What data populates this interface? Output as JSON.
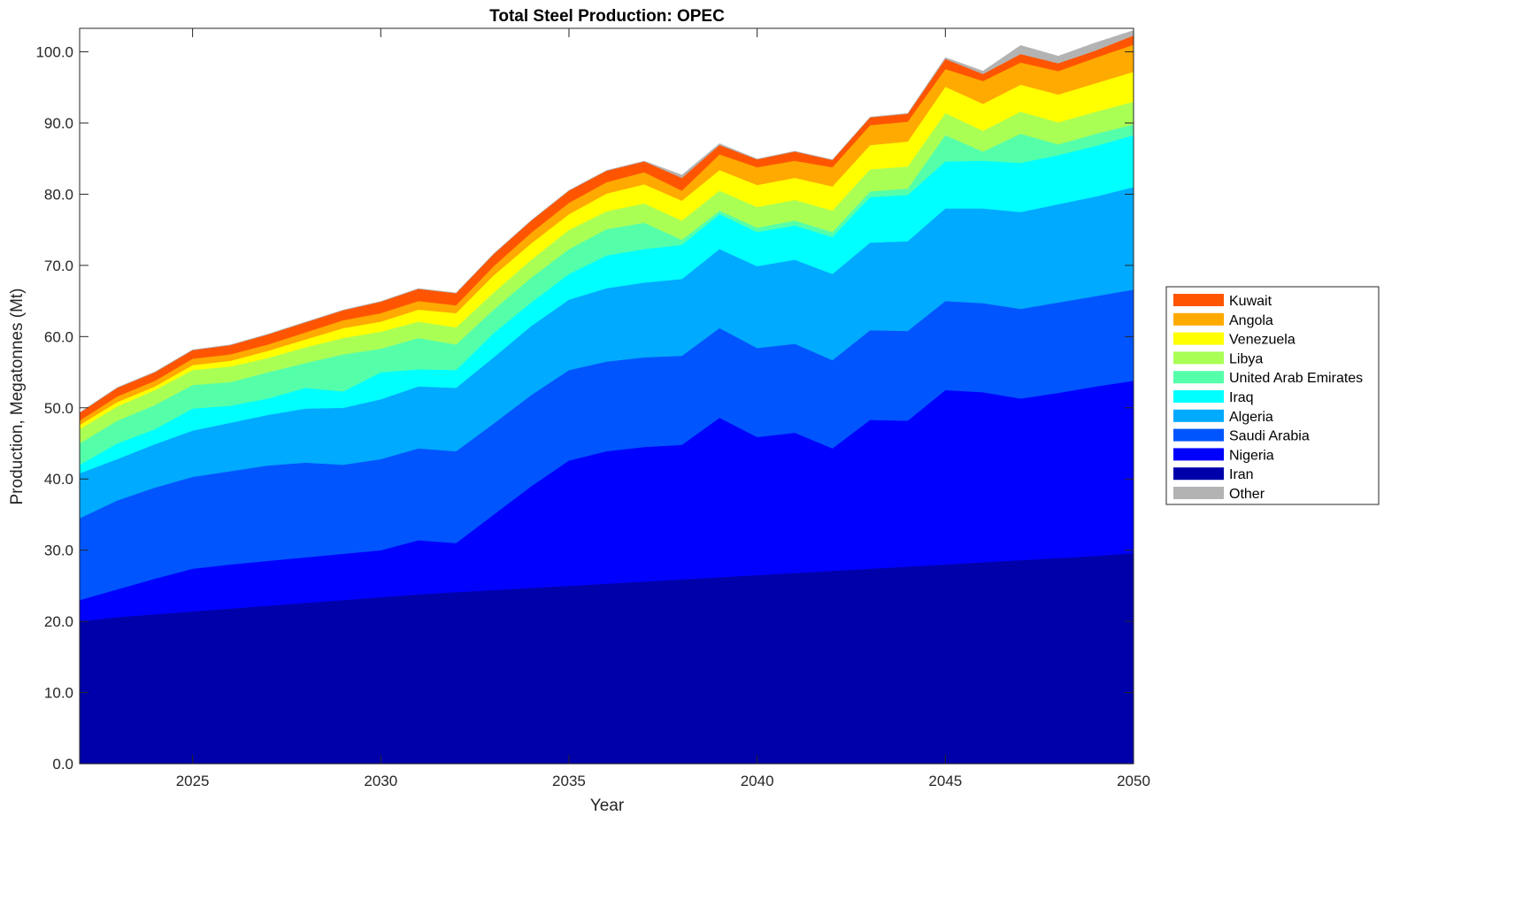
{
  "chart_data": {
    "type": "area",
    "stacked": true,
    "value_encoding": "stack_top = cumulative top of each layer (bottom layer first: Iran, Nigeria, Saudi Arabia, Algeria, Iraq, United Arab Emirates, Libya, Venezuela, Angola, Kuwait, Other); layer value = its stack_top minus the stack_top of the layer below",
    "title": "Total Steel Production: OPEC",
    "xlabel": "Year",
    "ylabel": "Production, Megatonnes (Mt)",
    "xlim": [
      2022,
      2050
    ],
    "ylim": [
      0,
      103.3
    ],
    "x_ticks": [
      "2025",
      "2030",
      "2035",
      "2040",
      "2045",
      "2050"
    ],
    "x_tick_values": [
      2025,
      2030,
      2035,
      2040,
      2045,
      2050
    ],
    "y_ticks": [
      "0.0",
      "10.0",
      "20.0",
      "30.0",
      "40.0",
      "50.0",
      "60.0",
      "70.0",
      "80.0",
      "90.0",
      "100.0"
    ],
    "y_tick_values": [
      0,
      10,
      20,
      30,
      40,
      50,
      60,
      70,
      80,
      90,
      100
    ],
    "grid": false,
    "legend_placement": "right",
    "x": [
      2022,
      2023,
      2024,
      2025,
      2026,
      2027,
      2028,
      2029,
      2030,
      2031,
      2032,
      2033,
      2034,
      2035,
      2036,
      2037,
      2038,
      2039,
      2040,
      2041,
      2042,
      2043,
      2044,
      2045,
      2046,
      2047,
      2048,
      2049,
      2050
    ],
    "series": [
      {
        "name": "Iran",
        "color": "#0000aa",
        "stack_top": [
          20.0,
          20.6,
          21.0,
          21.4,
          21.8,
          22.2,
          22.6,
          23.0,
          23.4,
          23.8,
          24.1,
          24.4,
          24.7,
          25.0,
          25.3,
          25.6,
          25.9,
          26.2,
          26.5,
          26.8,
          27.1,
          27.4,
          27.7,
          28.0,
          28.3,
          28.6,
          28.9,
          29.2,
          29.6
        ]
      },
      {
        "name": "Nigeria",
        "color": "#0000ff",
        "stack_top": [
          23.0,
          24.5,
          26.0,
          27.4,
          28.0,
          28.5,
          29.0,
          29.5,
          30.0,
          31.4,
          31.0,
          35.0,
          39.0,
          42.6,
          43.9,
          44.5,
          44.8,
          48.6,
          45.9,
          46.5,
          44.3,
          48.3,
          48.2,
          52.5,
          52.2,
          51.3,
          52.1,
          53.0,
          53.8
        ]
      },
      {
        "name": "Saudi Arabia",
        "color": "#0055ff",
        "stack_top": [
          34.5,
          37.0,
          38.8,
          40.3,
          41.1,
          41.9,
          42.3,
          42.0,
          42.8,
          44.3,
          43.9,
          47.8,
          51.8,
          55.3,
          56.5,
          57.1,
          57.3,
          61.2,
          58.4,
          59.0,
          56.7,
          60.9,
          60.8,
          65.0,
          64.7,
          63.9,
          64.8,
          65.7,
          66.6
        ]
      },
      {
        "name": "Algeria",
        "color": "#00aaff",
        "stack_top": [
          40.8,
          42.8,
          44.9,
          46.8,
          47.9,
          49.0,
          49.9,
          50.0,
          51.2,
          53.0,
          52.8,
          57.1,
          61.5,
          65.2,
          66.8,
          67.6,
          68.1,
          72.3,
          69.9,
          70.8,
          68.8,
          73.2,
          73.4,
          78.0,
          78.0,
          77.5,
          78.6,
          79.7,
          81.0
        ]
      },
      {
        "name": "Iraq",
        "color": "#00ffff",
        "stack_top": [
          42.0,
          45.0,
          47.0,
          49.9,
          50.3,
          51.3,
          52.8,
          52.3,
          55.0,
          55.4,
          55.3,
          60.5,
          64.8,
          68.8,
          71.4,
          72.3,
          72.9,
          77.2,
          74.7,
          75.6,
          74.0,
          79.6,
          79.9,
          84.6,
          84.7,
          84.4,
          85.5,
          86.8,
          88.3
        ]
      },
      {
        "name": "United Arab Emirates",
        "color": "#55ffaa",
        "stack_top": [
          45.0,
          48.2,
          50.4,
          53.2,
          53.6,
          55.0,
          56.3,
          57.5,
          58.3,
          59.8,
          58.9,
          63.8,
          68.3,
          72.3,
          75.1,
          76.0,
          73.6,
          77.7,
          75.3,
          76.3,
          74.7,
          80.4,
          80.8,
          88.3,
          86.0,
          88.5,
          87.0,
          88.5,
          89.8
        ]
      },
      {
        "name": "Libya",
        "color": "#aaff55",
        "stack_top": [
          47.0,
          50.2,
          52.5,
          55.3,
          55.8,
          57.0,
          58.5,
          59.8,
          60.7,
          62.1,
          61.3,
          66.2,
          70.8,
          75.0,
          77.6,
          78.7,
          76.3,
          80.5,
          78.2,
          79.2,
          77.7,
          83.5,
          83.9,
          91.4,
          88.9,
          91.6,
          90.1,
          91.6,
          93.0
        ]
      },
      {
        "name": "Venezuela",
        "color": "#ffff00",
        "stack_top": [
          47.6,
          50.8,
          53.0,
          56.0,
          56.6,
          58.0,
          59.6,
          61.2,
          62.1,
          63.8,
          63.3,
          68.6,
          73.1,
          77.2,
          80.1,
          81.4,
          79.1,
          83.4,
          81.3,
          82.3,
          81.1,
          86.9,
          87.4,
          95.1,
          92.7,
          95.4,
          94.0,
          95.6,
          97.2
        ]
      },
      {
        "name": "Angola",
        "color": "#ffaa00",
        "stack_top": [
          48.2,
          51.6,
          53.8,
          56.9,
          57.5,
          58.9,
          60.6,
          62.3,
          63.3,
          65.0,
          64.4,
          69.9,
          74.6,
          78.8,
          81.7,
          83.1,
          80.5,
          85.6,
          83.8,
          84.7,
          83.8,
          89.7,
          90.2,
          97.6,
          95.9,
          98.5,
          97.3,
          99.2,
          101.0
        ]
      },
      {
        "name": "Kuwait",
        "color": "#ff5500",
        "stack_top": [
          49.3,
          52.8,
          55.0,
          58.1,
          58.8,
          60.3,
          62.0,
          63.7,
          64.9,
          66.7,
          66.1,
          71.6,
          76.3,
          80.5,
          83.3,
          84.6,
          82.3,
          86.9,
          84.9,
          86.0,
          84.8,
          90.8,
          91.3,
          99.0,
          96.9,
          99.7,
          98.4,
          100.2,
          102.3
        ]
      },
      {
        "name": "Other",
        "color": "#b3b3b3",
        "stack_top": [
          49.35,
          52.85,
          55.05,
          58.15,
          58.85,
          60.35,
          62.05,
          63.75,
          64.95,
          66.75,
          66.15,
          71.65,
          76.35,
          80.55,
          83.35,
          84.65,
          82.7,
          87.1,
          84.95,
          86.05,
          84.85,
          90.85,
          91.35,
          99.2,
          97.3,
          100.9,
          99.4,
          101.3,
          103.0
        ]
      }
    ],
    "legend_order": [
      "Kuwait",
      "Angola",
      "Venezuela",
      "Libya",
      "United Arab Emirates",
      "Iraq",
      "Algeria",
      "Saudi Arabia",
      "Nigeria",
      "Iran",
      "Other"
    ]
  }
}
